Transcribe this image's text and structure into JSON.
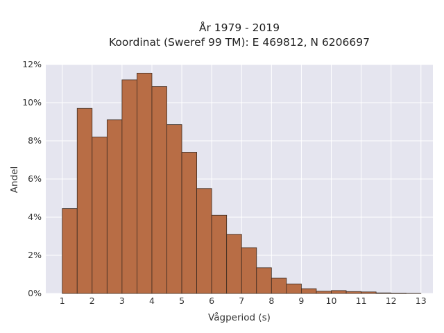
{
  "chart_data": {
    "type": "bar",
    "title": "År 1979 - 2019",
    "subtitle": "Koordinat (Sweref 99 TM): E 469812, N 6206697",
    "xlabel": "Vågperiod (s)",
    "ylabel": "Andel",
    "bin_width": 0.5,
    "x": [
      1.0,
      1.5,
      2.0,
      2.5,
      3.0,
      3.5,
      4.0,
      4.5,
      5.0,
      5.5,
      6.0,
      6.5,
      7.0,
      7.5,
      8.0,
      8.5,
      9.0,
      9.5,
      10.0,
      10.5,
      11.0,
      11.5,
      12.0,
      12.5
    ],
    "values": [
      4.45,
      9.7,
      8.2,
      9.1,
      11.2,
      11.55,
      10.85,
      8.85,
      7.4,
      5.5,
      4.1,
      3.1,
      2.4,
      1.35,
      0.8,
      0.5,
      0.25,
      0.12,
      0.15,
      0.1,
      0.08,
      0.03,
      0.02,
      0.01
    ],
    "xlim": [
      0.45,
      13.4
    ],
    "ylim": [
      0,
      12
    ],
    "xticks": [
      1,
      2,
      3,
      4,
      5,
      6,
      7,
      8,
      9,
      10,
      11,
      12,
      13
    ],
    "yticks": [
      0,
      2,
      4,
      6,
      8,
      10,
      12
    ],
    "ytick_format": "percent",
    "grid": true,
    "colors": {
      "bar_fill": "#b86d45",
      "bar_stroke": "#3a2a20",
      "plot_background": "#e5e5ef",
      "grid": "#ffffff"
    }
  }
}
